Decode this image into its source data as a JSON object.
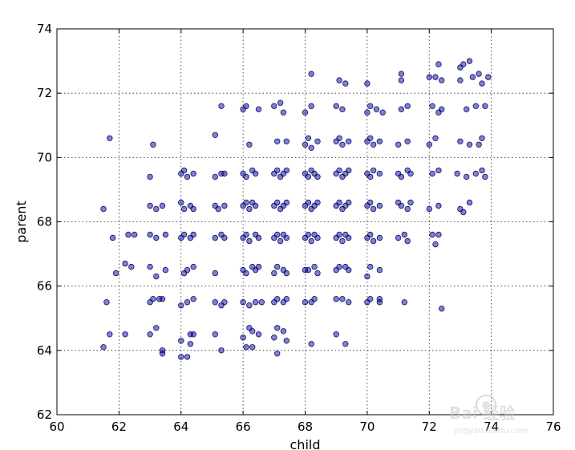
{
  "chart_data": {
    "type": "scatter",
    "title": "",
    "xlabel": "child",
    "ylabel": "parent",
    "xlim": [
      60,
      76
    ],
    "ylim": [
      62,
      74
    ],
    "xticks": [
      60,
      62,
      64,
      66,
      68,
      70,
      72,
      74,
      76
    ],
    "yticks": [
      62,
      64,
      66,
      68,
      70,
      72,
      74
    ],
    "grid": true,
    "marker_color": "#0000aa",
    "marker_alpha": 0.5,
    "points": [
      [
        61.5,
        64.1
      ],
      [
        61.7,
        64.5
      ],
      [
        62.2,
        64.5
      ],
      [
        63.0,
        64.5
      ],
      [
        63.2,
        64.7
      ],
      [
        63.4,
        64.0
      ],
      [
        63.4,
        63.9
      ],
      [
        64.0,
        63.8
      ],
      [
        64.2,
        63.8
      ],
      [
        64.0,
        64.3
      ],
      [
        64.3,
        64.2
      ],
      [
        64.3,
        64.5
      ],
      [
        64.4,
        64.5
      ],
      [
        65.1,
        64.5
      ],
      [
        65.3,
        64.0
      ],
      [
        66.0,
        64.4
      ],
      [
        66.1,
        64.1
      ],
      [
        66.2,
        64.7
      ],
      [
        66.3,
        64.1
      ],
      [
        66.3,
        64.6
      ],
      [
        66.5,
        64.5
      ],
      [
        67.0,
        64.4
      ],
      [
        67.1,
        64.7
      ],
      [
        67.1,
        63.9
      ],
      [
        67.3,
        64.6
      ],
      [
        67.4,
        64.3
      ],
      [
        68.2,
        64.2
      ],
      [
        69.0,
        64.5
      ],
      [
        69.3,
        64.2
      ],
      [
        61.6,
        65.5
      ],
      [
        63.0,
        65.5
      ],
      [
        63.1,
        65.6
      ],
      [
        63.3,
        65.6
      ],
      [
        63.4,
        65.6
      ],
      [
        64.0,
        65.4
      ],
      [
        64.2,
        65.5
      ],
      [
        64.4,
        65.6
      ],
      [
        65.1,
        65.5
      ],
      [
        65.3,
        65.4
      ],
      [
        65.4,
        65.5
      ],
      [
        66.0,
        65.5
      ],
      [
        66.2,
        65.4
      ],
      [
        66.4,
        65.5
      ],
      [
        66.6,
        65.5
      ],
      [
        67.0,
        65.5
      ],
      [
        67.1,
        65.6
      ],
      [
        67.3,
        65.5
      ],
      [
        67.4,
        65.6
      ],
      [
        68.0,
        65.5
      ],
      [
        68.2,
        65.5
      ],
      [
        68.3,
        65.6
      ],
      [
        69.0,
        65.6
      ],
      [
        69.2,
        65.6
      ],
      [
        69.4,
        65.5
      ],
      [
        70.0,
        65.5
      ],
      [
        70.1,
        65.6
      ],
      [
        70.4,
        65.5
      ],
      [
        70.4,
        65.6
      ],
      [
        71.2,
        65.5
      ],
      [
        72.4,
        65.3
      ],
      [
        61.9,
        66.4
      ],
      [
        62.2,
        66.7
      ],
      [
        62.4,
        66.6
      ],
      [
        63.0,
        66.6
      ],
      [
        63.2,
        66.3
      ],
      [
        63.5,
        66.5
      ],
      [
        64.1,
        66.4
      ],
      [
        64.2,
        66.5
      ],
      [
        64.4,
        66.6
      ],
      [
        65.1,
        66.4
      ],
      [
        66.0,
        66.5
      ],
      [
        66.1,
        66.4
      ],
      [
        66.3,
        66.6
      ],
      [
        66.4,
        66.5
      ],
      [
        66.5,
        66.6
      ],
      [
        67.0,
        66.4
      ],
      [
        67.1,
        66.6
      ],
      [
        67.3,
        66.5
      ],
      [
        67.4,
        66.4
      ],
      [
        68.0,
        66.5
      ],
      [
        68.1,
        66.5
      ],
      [
        68.3,
        66.6
      ],
      [
        68.4,
        66.4
      ],
      [
        69.0,
        66.5
      ],
      [
        69.1,
        66.6
      ],
      [
        69.3,
        66.6
      ],
      [
        69.4,
        66.5
      ],
      [
        70.0,
        66.3
      ],
      [
        70.1,
        66.6
      ],
      [
        70.4,
        66.5
      ],
      [
        61.8,
        67.5
      ],
      [
        62.3,
        67.6
      ],
      [
        62.5,
        67.6
      ],
      [
        63.0,
        67.6
      ],
      [
        63.2,
        67.5
      ],
      [
        63.5,
        67.6
      ],
      [
        64.0,
        67.5
      ],
      [
        64.1,
        67.6
      ],
      [
        64.3,
        67.5
      ],
      [
        64.4,
        67.6
      ],
      [
        65.1,
        67.5
      ],
      [
        65.3,
        67.6
      ],
      [
        65.4,
        67.5
      ],
      [
        66.0,
        67.5
      ],
      [
        66.1,
        67.6
      ],
      [
        66.2,
        67.4
      ],
      [
        66.4,
        67.6
      ],
      [
        66.5,
        67.5
      ],
      [
        67.0,
        67.5
      ],
      [
        67.1,
        67.6
      ],
      [
        67.2,
        67.4
      ],
      [
        67.3,
        67.6
      ],
      [
        67.4,
        67.5
      ],
      [
        68.0,
        67.5
      ],
      [
        68.1,
        67.6
      ],
      [
        68.2,
        67.4
      ],
      [
        68.3,
        67.6
      ],
      [
        68.4,
        67.5
      ],
      [
        69.0,
        67.5
      ],
      [
        69.1,
        67.6
      ],
      [
        69.2,
        67.4
      ],
      [
        69.3,
        67.6
      ],
      [
        69.4,
        67.5
      ],
      [
        70.0,
        67.5
      ],
      [
        70.1,
        67.6
      ],
      [
        70.2,
        67.4
      ],
      [
        70.4,
        67.5
      ],
      [
        71.0,
        67.5
      ],
      [
        71.2,
        67.6
      ],
      [
        71.3,
        67.4
      ],
      [
        72.1,
        67.6
      ],
      [
        72.3,
        67.6
      ],
      [
        72.2,
        67.3
      ],
      [
        61.5,
        68.4
      ],
      [
        63.0,
        68.5
      ],
      [
        63.2,
        68.4
      ],
      [
        63.4,
        68.5
      ],
      [
        64.0,
        68.6
      ],
      [
        64.1,
        68.4
      ],
      [
        64.3,
        68.5
      ],
      [
        64.4,
        68.4
      ],
      [
        65.1,
        68.5
      ],
      [
        65.2,
        68.4
      ],
      [
        65.4,
        68.5
      ],
      [
        66.0,
        68.5
      ],
      [
        66.1,
        68.6
      ],
      [
        66.2,
        68.4
      ],
      [
        66.3,
        68.6
      ],
      [
        66.4,
        68.5
      ],
      [
        67.0,
        68.5
      ],
      [
        67.1,
        68.6
      ],
      [
        67.2,
        68.4
      ],
      [
        67.3,
        68.5
      ],
      [
        67.4,
        68.6
      ],
      [
        68.0,
        68.5
      ],
      [
        68.1,
        68.6
      ],
      [
        68.2,
        68.4
      ],
      [
        68.3,
        68.5
      ],
      [
        68.4,
        68.6
      ],
      [
        69.0,
        68.5
      ],
      [
        69.1,
        68.6
      ],
      [
        69.2,
        68.4
      ],
      [
        69.3,
        68.5
      ],
      [
        69.4,
        68.6
      ],
      [
        70.0,
        68.5
      ],
      [
        70.1,
        68.6
      ],
      [
        70.2,
        68.4
      ],
      [
        70.4,
        68.5
      ],
      [
        71.0,
        68.6
      ],
      [
        71.1,
        68.5
      ],
      [
        71.3,
        68.4
      ],
      [
        71.4,
        68.6
      ],
      [
        72.0,
        68.4
      ],
      [
        72.3,
        68.5
      ],
      [
        73.0,
        68.4
      ],
      [
        73.1,
        68.3
      ],
      [
        73.3,
        68.6
      ],
      [
        63.0,
        69.4
      ],
      [
        64.0,
        69.5
      ],
      [
        64.1,
        69.6
      ],
      [
        64.2,
        69.4
      ],
      [
        64.4,
        69.5
      ],
      [
        65.1,
        69.4
      ],
      [
        65.3,
        69.5
      ],
      [
        65.4,
        69.5
      ],
      [
        66.0,
        69.5
      ],
      [
        66.1,
        69.4
      ],
      [
        66.3,
        69.6
      ],
      [
        66.4,
        69.5
      ],
      [
        67.0,
        69.5
      ],
      [
        67.1,
        69.6
      ],
      [
        67.2,
        69.4
      ],
      [
        67.3,
        69.5
      ],
      [
        67.4,
        69.6
      ],
      [
        68.0,
        69.5
      ],
      [
        68.1,
        69.4
      ],
      [
        68.2,
        69.6
      ],
      [
        68.3,
        69.5
      ],
      [
        68.4,
        69.4
      ],
      [
        69.0,
        69.5
      ],
      [
        69.1,
        69.6
      ],
      [
        69.2,
        69.4
      ],
      [
        69.3,
        69.5
      ],
      [
        69.4,
        69.6
      ],
      [
        70.0,
        69.5
      ],
      [
        70.1,
        69.4
      ],
      [
        70.2,
        69.6
      ],
      [
        70.4,
        69.5
      ],
      [
        71.0,
        69.5
      ],
      [
        71.1,
        69.4
      ],
      [
        71.3,
        69.6
      ],
      [
        71.4,
        69.5
      ],
      [
        72.1,
        69.5
      ],
      [
        72.3,
        69.6
      ],
      [
        72.9,
        69.5
      ],
      [
        73.2,
        69.4
      ],
      [
        73.5,
        69.5
      ],
      [
        73.8,
        69.4
      ],
      [
        73.7,
        69.6
      ],
      [
        61.7,
        70.6
      ],
      [
        63.1,
        70.4
      ],
      [
        65.1,
        70.7
      ],
      [
        66.2,
        70.4
      ],
      [
        67.1,
        70.5
      ],
      [
        67.4,
        70.5
      ],
      [
        68.0,
        70.4
      ],
      [
        68.1,
        70.6
      ],
      [
        68.2,
        70.3
      ],
      [
        68.4,
        70.5
      ],
      [
        69.0,
        70.5
      ],
      [
        69.1,
        70.6
      ],
      [
        69.2,
        70.4
      ],
      [
        69.4,
        70.5
      ],
      [
        70.0,
        70.5
      ],
      [
        70.1,
        70.6
      ],
      [
        70.2,
        70.4
      ],
      [
        70.4,
        70.5
      ],
      [
        71.0,
        70.4
      ],
      [
        71.3,
        70.5
      ],
      [
        72.0,
        70.4
      ],
      [
        72.2,
        70.6
      ],
      [
        73.0,
        70.5
      ],
      [
        73.3,
        70.4
      ],
      [
        73.6,
        70.4
      ],
      [
        73.7,
        70.6
      ],
      [
        65.3,
        71.6
      ],
      [
        66.0,
        71.5
      ],
      [
        66.1,
        71.6
      ],
      [
        66.5,
        71.5
      ],
      [
        67.0,
        71.6
      ],
      [
        67.2,
        71.7
      ],
      [
        67.3,
        71.4
      ],
      [
        68.0,
        71.4
      ],
      [
        68.2,
        71.6
      ],
      [
        69.0,
        71.6
      ],
      [
        69.2,
        71.5
      ],
      [
        70.0,
        71.4
      ],
      [
        70.1,
        71.6
      ],
      [
        70.3,
        71.5
      ],
      [
        70.5,
        71.4
      ],
      [
        71.1,
        71.5
      ],
      [
        71.3,
        71.6
      ],
      [
        72.1,
        71.6
      ],
      [
        72.3,
        71.4
      ],
      [
        72.4,
        71.5
      ],
      [
        73.2,
        71.5
      ],
      [
        73.5,
        71.6
      ],
      [
        73.8,
        71.6
      ],
      [
        68.2,
        72.6
      ],
      [
        69.1,
        72.4
      ],
      [
        69.3,
        72.3
      ],
      [
        70.0,
        72.3
      ],
      [
        71.1,
        72.6
      ],
      [
        71.1,
        72.4
      ],
      [
        72.0,
        72.5
      ],
      [
        72.2,
        72.5
      ],
      [
        72.3,
        72.9
      ],
      [
        72.4,
        72.4
      ],
      [
        73.0,
        72.8
      ],
      [
        73.1,
        72.9
      ],
      [
        73.3,
        73.0
      ],
      [
        73.0,
        72.4
      ],
      [
        73.4,
        72.5
      ],
      [
        73.6,
        72.6
      ],
      [
        73.7,
        72.3
      ],
      [
        73.9,
        72.5
      ]
    ]
  }
}
